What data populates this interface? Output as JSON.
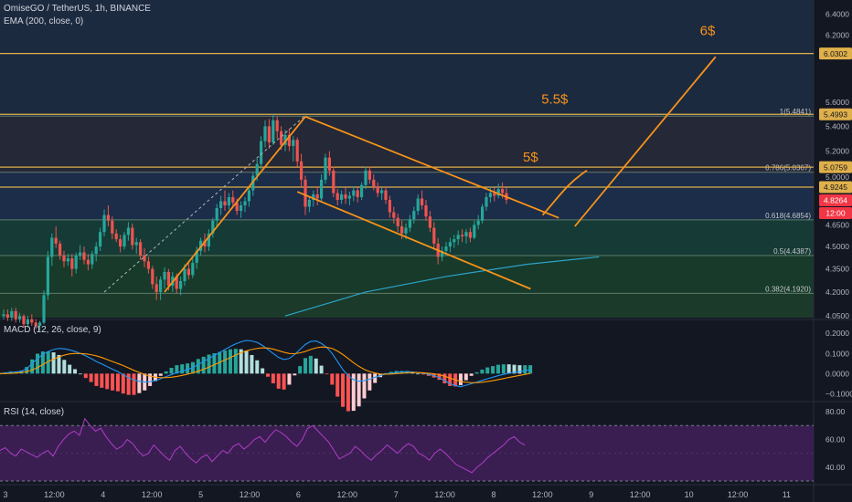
{
  "header": {
    "symbol": "OmiseGO / TetherUS, 1h, BINANCE",
    "ema": "EMA (200, close, 0)"
  },
  "macd": {
    "title": "MACD (12, 26, close, 9)"
  },
  "rsi": {
    "title": "RSI (14, close)"
  },
  "colors": {
    "background": "#131722",
    "up": "#26a69a",
    "down": "#ef5350",
    "trend": "#f7931a",
    "fib_line": "#e0b04a",
    "ema": "#2ba3c8",
    "macd_line": "#2196f3",
    "signal_line": "#ff9800",
    "rsi_line": "#9c27b0",
    "rsi_band": "#3a1e52"
  },
  "chart_data": [
    {
      "type": "candlestick",
      "title": "OmiseGO / TetherUS, 1h, BINANCE",
      "y_axis": {
        "scale": "log",
        "range": [
          4.04,
          6.54
        ],
        "ticks": [
          6.4,
          6.2,
          5.6,
          5.4,
          5.2,
          5.0,
          4.65,
          4.5,
          4.35,
          4.2,
          4.05
        ]
      },
      "x_axis": {
        "ticks": [
          "3",
          "12:00",
          "4",
          "12:00",
          "5",
          "12:00",
          "6",
          "12:00",
          "7",
          "12:00",
          "8",
          "12:00",
          "9",
          "12:00",
          "10",
          "12:00",
          "11"
        ]
      },
      "fib_levels": [
        {
          "label": "1(5.4841)",
          "value": 5.4841
        },
        {
          "label": "0.786(5.0367)",
          "value": 5.0367
        },
        {
          "label": "0.618(4.6854)",
          "value": 4.6854
        },
        {
          "label": "0.5(4.4387)",
          "value": 4.4387
        },
        {
          "label": "0.382(4.1920)",
          "value": 4.192
        }
      ],
      "price_tags": [
        {
          "text": "6.0302",
          "value": 6.0302,
          "style": "level"
        },
        {
          "text": "5.4993",
          "value": 5.4993,
          "style": "level"
        },
        {
          "text": "5.0759",
          "value": 5.0759,
          "style": "level"
        },
        {
          "text": "4.9245",
          "value": 4.9245,
          "style": "level"
        },
        {
          "text": "4.8264",
          "value": 4.8264,
          "style": "last"
        },
        {
          "text": "12:00",
          "value": 4.76,
          "style": "last"
        }
      ],
      "horizontal_lines": [
        6.0302,
        5.4993,
        5.0759,
        4.9245
      ],
      "annotations": [
        {
          "text": "6$",
          "time": 175,
          "price": 6.2
        },
        {
          "text": "5.5$",
          "time": 137,
          "price": 5.59
        },
        {
          "text": "5$",
          "time": 131,
          "price": 5.12
        }
      ],
      "drawings": [
        {
          "kind": "line",
          "points": [
            [
              25,
              4.2
            ],
            [
              75,
              5.49
            ]
          ],
          "dashed": true,
          "color": "#b2b5be"
        },
        {
          "kind": "line",
          "points": [
            [
              40,
              4.2
            ],
            [
              75,
              5.48
            ]
          ]
        },
        {
          "kind": "line",
          "points": [
            [
              75,
              5.48
            ],
            [
              138,
              4.7
            ]
          ]
        },
        {
          "kind": "line",
          "points": [
            [
              73,
              4.89
            ],
            [
              131,
              4.22
            ]
          ]
        },
        {
          "kind": "line",
          "points": [
            [
              142,
              4.64
            ],
            [
              177,
              6.0
            ]
          ]
        },
        {
          "kind": "curve",
          "points": [
            [
              134,
              4.72
            ],
            [
              138,
              4.85
            ],
            [
              140,
              4.95
            ],
            [
              145,
              5.05
            ]
          ]
        }
      ],
      "ema_points": [
        [
          70,
          4.05
        ],
        [
          90,
          4.2
        ],
        [
          110,
          4.3
        ],
        [
          130,
          4.38
        ],
        [
          148,
          4.43
        ]
      ],
      "candles": [
        [
          4.05,
          4.09,
          4.03,
          4.06
        ],
        [
          4.06,
          4.09,
          4.02,
          4.04
        ],
        [
          4.04,
          4.1,
          4.02,
          4.08
        ],
        [
          4.08,
          4.1,
          4.01,
          4.03
        ],
        [
          4.03,
          4.07,
          4.01,
          4.05
        ],
        [
          4.05,
          4.06,
          3.98,
          4.0
        ],
        [
          4.0,
          4.05,
          3.98,
          4.03
        ],
        [
          4.03,
          4.06,
          3.99,
          4.01
        ],
        [
          4.01,
          4.03,
          3.97,
          3.99
        ],
        [
          3.99,
          4.02,
          3.96,
          4.01
        ],
        [
          4.01,
          4.21,
          4.0,
          4.18
        ],
        [
          4.18,
          4.47,
          4.15,
          4.43
        ],
        [
          4.43,
          4.59,
          4.37,
          4.56
        ],
        [
          4.56,
          4.64,
          4.49,
          4.52
        ],
        [
          4.52,
          4.54,
          4.41,
          4.44
        ],
        [
          4.44,
          4.47,
          4.36,
          4.4
        ],
        [
          4.4,
          4.45,
          4.37,
          4.42
        ],
        [
          4.42,
          4.45,
          4.3,
          4.35
        ],
        [
          4.35,
          4.46,
          4.32,
          4.44
        ],
        [
          4.44,
          4.51,
          4.41,
          4.46
        ],
        [
          4.46,
          4.5,
          4.38,
          4.41
        ],
        [
          4.41,
          4.45,
          4.34,
          4.38
        ],
        [
          4.38,
          4.47,
          4.35,
          4.45
        ],
        [
          4.45,
          4.53,
          4.4,
          4.5
        ],
        [
          4.5,
          4.63,
          4.47,
          4.6
        ],
        [
          4.6,
          4.76,
          4.57,
          4.72
        ],
        [
          4.72,
          4.79,
          4.64,
          4.68
        ],
        [
          4.68,
          4.71,
          4.55,
          4.59
        ],
        [
          4.59,
          4.62,
          4.53,
          4.55
        ],
        [
          4.55,
          4.58,
          4.46,
          4.5
        ],
        [
          4.5,
          4.6,
          4.48,
          4.58
        ],
        [
          4.58,
          4.67,
          4.54,
          4.63
        ],
        [
          4.63,
          4.66,
          4.48,
          4.51
        ],
        [
          4.51,
          4.56,
          4.45,
          4.53
        ],
        [
          4.53,
          4.55,
          4.41,
          4.44
        ],
        [
          4.44,
          4.49,
          4.36,
          4.4
        ],
        [
          4.4,
          4.43,
          4.32,
          4.35
        ],
        [
          4.35,
          4.37,
          4.22,
          4.25
        ],
        [
          4.25,
          4.3,
          4.15,
          4.2
        ],
        [
          4.2,
          4.3,
          4.15,
          4.28
        ],
        [
          4.28,
          4.36,
          4.22,
          4.33
        ],
        [
          4.33,
          4.35,
          4.21,
          4.24
        ],
        [
          4.24,
          4.33,
          4.2,
          4.3
        ],
        [
          4.3,
          4.32,
          4.19,
          4.22
        ],
        [
          4.22,
          4.3,
          4.18,
          4.27
        ],
        [
          4.27,
          4.38,
          4.24,
          4.35
        ],
        [
          4.35,
          4.4,
          4.28,
          4.31
        ],
        [
          4.31,
          4.42,
          4.29,
          4.39
        ],
        [
          4.39,
          4.5,
          4.35,
          4.47
        ],
        [
          4.47,
          4.56,
          4.44,
          4.54
        ],
        [
          4.54,
          4.59,
          4.46,
          4.5
        ],
        [
          4.5,
          4.62,
          4.47,
          4.59
        ],
        [
          4.59,
          4.7,
          4.56,
          4.68
        ],
        [
          4.68,
          4.8,
          4.64,
          4.77
        ],
        [
          4.77,
          4.86,
          4.72,
          4.82
        ],
        [
          4.82,
          4.9,
          4.75,
          4.79
        ],
        [
          4.79,
          4.88,
          4.76,
          4.85
        ],
        [
          4.85,
          4.9,
          4.78,
          4.81
        ],
        [
          4.81,
          4.84,
          4.72,
          4.75
        ],
        [
          4.75,
          4.82,
          4.7,
          4.79
        ],
        [
          4.79,
          4.85,
          4.74,
          4.82
        ],
        [
          4.82,
          4.92,
          4.78,
          4.9
        ],
        [
          4.9,
          5.04,
          4.86,
          5.01
        ],
        [
          5.01,
          5.14,
          4.97,
          5.1
        ],
        [
          5.1,
          5.32,
          5.06,
          5.28
        ],
        [
          5.28,
          5.45,
          5.23,
          5.4
        ],
        [
          5.4,
          5.46,
          5.22,
          5.27
        ],
        [
          5.27,
          5.5,
          5.25,
          5.45
        ],
        [
          5.45,
          5.48,
          5.3,
          5.36
        ],
        [
          5.36,
          5.4,
          5.21,
          5.25
        ],
        [
          5.25,
          5.37,
          5.2,
          5.33
        ],
        [
          5.33,
          5.38,
          5.2,
          5.24
        ],
        [
          5.24,
          5.32,
          5.12,
          5.29
        ],
        [
          5.29,
          5.31,
          5.08,
          5.12
        ],
        [
          5.12,
          5.18,
          4.93,
          4.98
        ],
        [
          4.98,
          5.01,
          4.72,
          4.78
        ],
        [
          4.78,
          4.86,
          4.74,
          4.83
        ],
        [
          4.83,
          4.9,
          4.78,
          4.87
        ],
        [
          4.87,
          4.93,
          4.79,
          4.84
        ],
        [
          4.84,
          5.02,
          4.82,
          4.98
        ],
        [
          4.98,
          5.18,
          4.95,
          5.15
        ],
        [
          5.15,
          5.2,
          5.01,
          5.05
        ],
        [
          5.05,
          5.08,
          4.85,
          4.88
        ],
        [
          4.88,
          4.91,
          4.79,
          4.83
        ],
        [
          4.83,
          4.9,
          4.8,
          4.87
        ],
        [
          4.87,
          4.92,
          4.8,
          4.84
        ],
        [
          4.84,
          4.89,
          4.79,
          4.86
        ],
        [
          4.86,
          4.93,
          4.82,
          4.9
        ],
        [
          4.9,
          4.92,
          4.81,
          4.85
        ],
        [
          4.85,
          4.96,
          4.83,
          4.94
        ],
        [
          4.94,
          5.08,
          4.91,
          5.05
        ],
        [
          5.05,
          5.08,
          4.95,
          4.98
        ],
        [
          4.98,
          5.02,
          4.9,
          4.93
        ],
        [
          4.93,
          4.96,
          4.85,
          4.88
        ],
        [
          4.88,
          4.92,
          4.83,
          4.9
        ],
        [
          4.9,
          4.93,
          4.8,
          4.83
        ],
        [
          4.83,
          4.86,
          4.7,
          4.74
        ],
        [
          4.74,
          4.78,
          4.66,
          4.7
        ],
        [
          4.7,
          4.73,
          4.6,
          4.64
        ],
        [
          4.64,
          4.68,
          4.55,
          4.59
        ],
        [
          4.59,
          4.66,
          4.55,
          4.63
        ],
        [
          4.63,
          4.72,
          4.6,
          4.69
        ],
        [
          4.69,
          4.78,
          4.66,
          4.75
        ],
        [
          4.75,
          4.87,
          4.72,
          4.84
        ],
        [
          4.84,
          4.9,
          4.76,
          4.79
        ],
        [
          4.79,
          4.83,
          4.68,
          4.71
        ],
        [
          4.71,
          4.75,
          4.6,
          4.63
        ],
        [
          4.63,
          4.67,
          4.48,
          4.52
        ],
        [
          4.52,
          4.56,
          4.38,
          4.43
        ],
        [
          4.43,
          4.5,
          4.4,
          4.47
        ],
        [
          4.47,
          4.53,
          4.44,
          4.5
        ],
        [
          4.5,
          4.56,
          4.46,
          4.53
        ],
        [
          4.53,
          4.58,
          4.49,
          4.55
        ],
        [
          4.55,
          4.61,
          4.51,
          4.58
        ],
        [
          4.58,
          4.62,
          4.53,
          4.57
        ],
        [
          4.57,
          4.62,
          4.52,
          4.6
        ],
        [
          4.6,
          4.63,
          4.53,
          4.56
        ],
        [
          4.56,
          4.68,
          4.55,
          4.65
        ],
        [
          4.65,
          4.72,
          4.62,
          4.68
        ],
        [
          4.68,
          4.8,
          4.66,
          4.78
        ],
        [
          4.78,
          4.88,
          4.75,
          4.85
        ],
        [
          4.85,
          4.93,
          4.81,
          4.88
        ],
        [
          4.88,
          4.92,
          4.82,
          4.86
        ],
        [
          4.86,
          4.95,
          4.84,
          4.91
        ],
        [
          4.91,
          4.96,
          4.84,
          4.88
        ],
        [
          4.88,
          4.92,
          4.8,
          4.83
        ]
      ]
    },
    {
      "type": "histogram+line",
      "title": "MACD (12, 26, close, 9)",
      "y_axis": {
        "range": [
          -0.13,
          0.26
        ],
        "ticks": [
          "0.2000",
          "0.1000",
          "0.0000",
          "−0.1000"
        ]
      },
      "macd": [
        0.0,
        0.003,
        0.006,
        0.008,
        0.012,
        0.025,
        0.05,
        0.075,
        0.095,
        0.11,
        0.12,
        0.125,
        0.123,
        0.118,
        0.11,
        0.1,
        0.088,
        0.075,
        0.06,
        0.048,
        0.035,
        0.022,
        0.01,
        -0.005,
        -0.02,
        -0.032,
        -0.038,
        -0.042,
        -0.04,
        -0.035,
        -0.025,
        -0.015,
        -0.005,
        0.005,
        0.012,
        0.02,
        0.03,
        0.045,
        0.06,
        0.075,
        0.09,
        0.105,
        0.12,
        0.135,
        0.148,
        0.158,
        0.165,
        0.162,
        0.155,
        0.14,
        0.12,
        0.1,
        0.08,
        0.07,
        0.075,
        0.095,
        0.12,
        0.145,
        0.16,
        0.162,
        0.15,
        0.13,
        0.1,
        0.06,
        0.02,
        -0.01,
        -0.03,
        -0.038,
        -0.035,
        -0.028,
        -0.018,
        -0.01,
        -0.002,
        0.002,
        0.006,
        0.008,
        0.01,
        0.008,
        0.005,
        0.002,
        -0.003,
        -0.01,
        -0.02,
        -0.035,
        -0.05,
        -0.06,
        -0.065,
        -0.058,
        -0.05,
        -0.042,
        -0.034,
        -0.025,
        -0.018,
        -0.01,
        -0.004,
        0.002,
        0.006,
        0.01,
        0.015,
        0.02
      ],
      "signal": [
        0.0,
        0.0,
        0.001,
        0.003,
        0.005,
        0.01,
        0.018,
        0.03,
        0.045,
        0.06,
        0.072,
        0.083,
        0.092,
        0.098,
        0.1,
        0.1,
        0.098,
        0.094,
        0.088,
        0.08,
        0.07,
        0.06,
        0.05,
        0.04,
        0.028,
        0.016,
        0.006,
        -0.004,
        -0.012,
        -0.018,
        -0.02,
        -0.02,
        -0.018,
        -0.014,
        -0.009,
        -0.003,
        0.004,
        0.012,
        0.022,
        0.032,
        0.044,
        0.056,
        0.068,
        0.08,
        0.092,
        0.103,
        0.113,
        0.12,
        0.125,
        0.128,
        0.127,
        0.122,
        0.114,
        0.106,
        0.1,
        0.099,
        0.103,
        0.11,
        0.12,
        0.128,
        0.132,
        0.131,
        0.125,
        0.112,
        0.095,
        0.075,
        0.054,
        0.036,
        0.021,
        0.01,
        0.003,
        -0.002,
        -0.003,
        -0.002,
        0.0,
        0.002,
        0.004,
        0.005,
        0.005,
        0.004,
        0.002,
        -0.001,
        -0.006,
        -0.013,
        -0.022,
        -0.031,
        -0.039,
        -0.043,
        -0.045,
        -0.045,
        -0.043,
        -0.039,
        -0.035,
        -0.03,
        -0.025,
        -0.019,
        -0.014,
        -0.009,
        -0.004,
        0.001
      ]
    },
    {
      "type": "line",
      "title": "RSI (14, close)",
      "y_axis": {
        "range": [
          28,
          86
        ],
        "ticks": [
          "80.00",
          "60.00",
          "40.00"
        ],
        "band": [
          30,
          70
        ]
      },
      "rsi": [
        52,
        54,
        50,
        48,
        53,
        51,
        49,
        47,
        50,
        52,
        48,
        55,
        60,
        64,
        66,
        63,
        75,
        70,
        66,
        68,
        62,
        57,
        53,
        55,
        60,
        57,
        52,
        48,
        50,
        56,
        52,
        48,
        45,
        52,
        55,
        50,
        46,
        43,
        47,
        49,
        44,
        48,
        52,
        50,
        55,
        57,
        53,
        56,
        60,
        62,
        58,
        63,
        67,
        65,
        62,
        58,
        55,
        60,
        68,
        70,
        66,
        62,
        58,
        52,
        46,
        48,
        50,
        55,
        52,
        48,
        45,
        49,
        52,
        56,
        53,
        50,
        54,
        57,
        55,
        50,
        48,
        45,
        50,
        53,
        50,
        46,
        42,
        40,
        38,
        36,
        40,
        43,
        47,
        50,
        53,
        56,
        60,
        62,
        58,
        56
      ]
    }
  ]
}
